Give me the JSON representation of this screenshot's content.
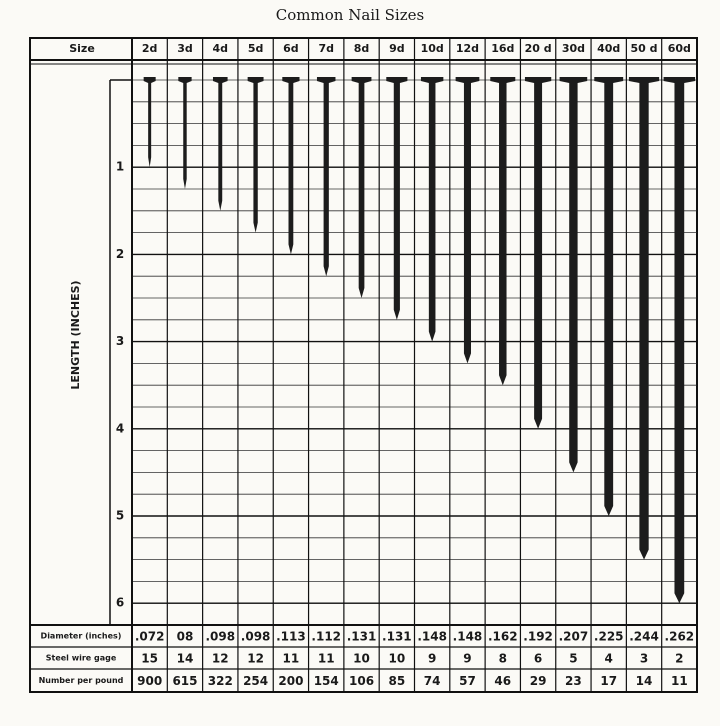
{
  "chart_data": {
    "type": "nail",
    "title": "Common Nail Sizes",
    "header_label": "Size",
    "y_label": "LENGTH (INCHES)",
    "categories": [
      "2d",
      "3d",
      "4d",
      "5d",
      "6d",
      "7d",
      "8d",
      "9d",
      "10d",
      "12d",
      "16d",
      "20 d",
      "30d",
      "40d",
      "50 d",
      "60d"
    ],
    "values": [
      1,
      1.25,
      1.5,
      1.75,
      2,
      2.25,
      2.5,
      2.75,
      3,
      3.25,
      3.5,
      4,
      4.5,
      5,
      5.5,
      6
    ],
    "ylim": [
      0,
      6.25
    ],
    "yticks": [
      1,
      2,
      3,
      4,
      5,
      6
    ],
    "grid": true,
    "color": "#1c1c1c",
    "table": [
      {
        "label": "Diameter (inches)",
        "cells": [
          ".072",
          "08",
          ".098",
          ".098",
          ".113",
          ".112",
          ".131",
          ".131",
          ".148",
          ".148",
          ".162",
          ".192",
          ".207",
          ".225",
          ".244",
          ".262"
        ]
      },
      {
        "label": "Steel wire gage",
        "cells": [
          15,
          14,
          12,
          12,
          11,
          11,
          10,
          10,
          9,
          9,
          8,
          6,
          5,
          4,
          3,
          2
        ]
      },
      {
        "label": "Number per pound",
        "cells": [
          900,
          615,
          322,
          254,
          200,
          154,
          106,
          85,
          74,
          57,
          46,
          29,
          23,
          17,
          14,
          11
        ]
      }
    ]
  }
}
